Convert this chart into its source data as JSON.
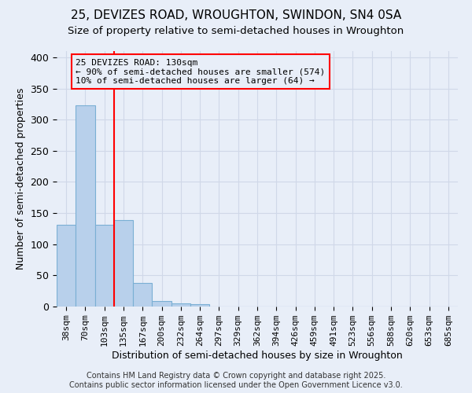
{
  "title_line1": "25, DEVIZES ROAD, WROUGHTON, SWINDON, SN4 0SA",
  "title_line2": "Size of property relative to semi-detached houses in Wroughton",
  "xlabel": "Distribution of semi-detached houses by size in Wroughton",
  "ylabel": "Number of semi-detached properties",
  "categories": [
    "38sqm",
    "70sqm",
    "103sqm",
    "135sqm",
    "167sqm",
    "200sqm",
    "232sqm",
    "264sqm",
    "297sqm",
    "329sqm",
    "362sqm",
    "394sqm",
    "426sqm",
    "459sqm",
    "491sqm",
    "523sqm",
    "556sqm",
    "588sqm",
    "620sqm",
    "653sqm",
    "685sqm"
  ],
  "values": [
    131,
    323,
    131,
    139,
    38,
    9,
    5,
    4,
    0,
    0,
    0,
    0,
    0,
    0,
    0,
    0,
    0,
    0,
    0,
    0,
    0
  ],
  "bar_color": "#b8d0eb",
  "bar_edge_color": "#7aafd4",
  "background_color": "#e8eef8",
  "grid_color": "#d0d8e8",
  "vline_color": "red",
  "vline_x": 2.5,
  "annotation_text": "25 DEVIZES ROAD: 130sqm\n← 90% of semi-detached houses are smaller (574)\n10% of semi-detached houses are larger (64) →",
  "annotation_box_color": "red",
  "annotation_bg_color": "#e8eef8",
  "ylim": [
    0,
    410
  ],
  "yticks": [
    0,
    50,
    100,
    150,
    200,
    250,
    300,
    350,
    400
  ],
  "footer_line1": "Contains HM Land Registry data © Crown copyright and database right 2025.",
  "footer_line2": "Contains public sector information licensed under the Open Government Licence v3.0.",
  "title_fontsize": 11,
  "subtitle_fontsize": 9.5,
  "axis_label_fontsize": 9,
  "tick_fontsize": 8,
  "footer_fontsize": 7
}
